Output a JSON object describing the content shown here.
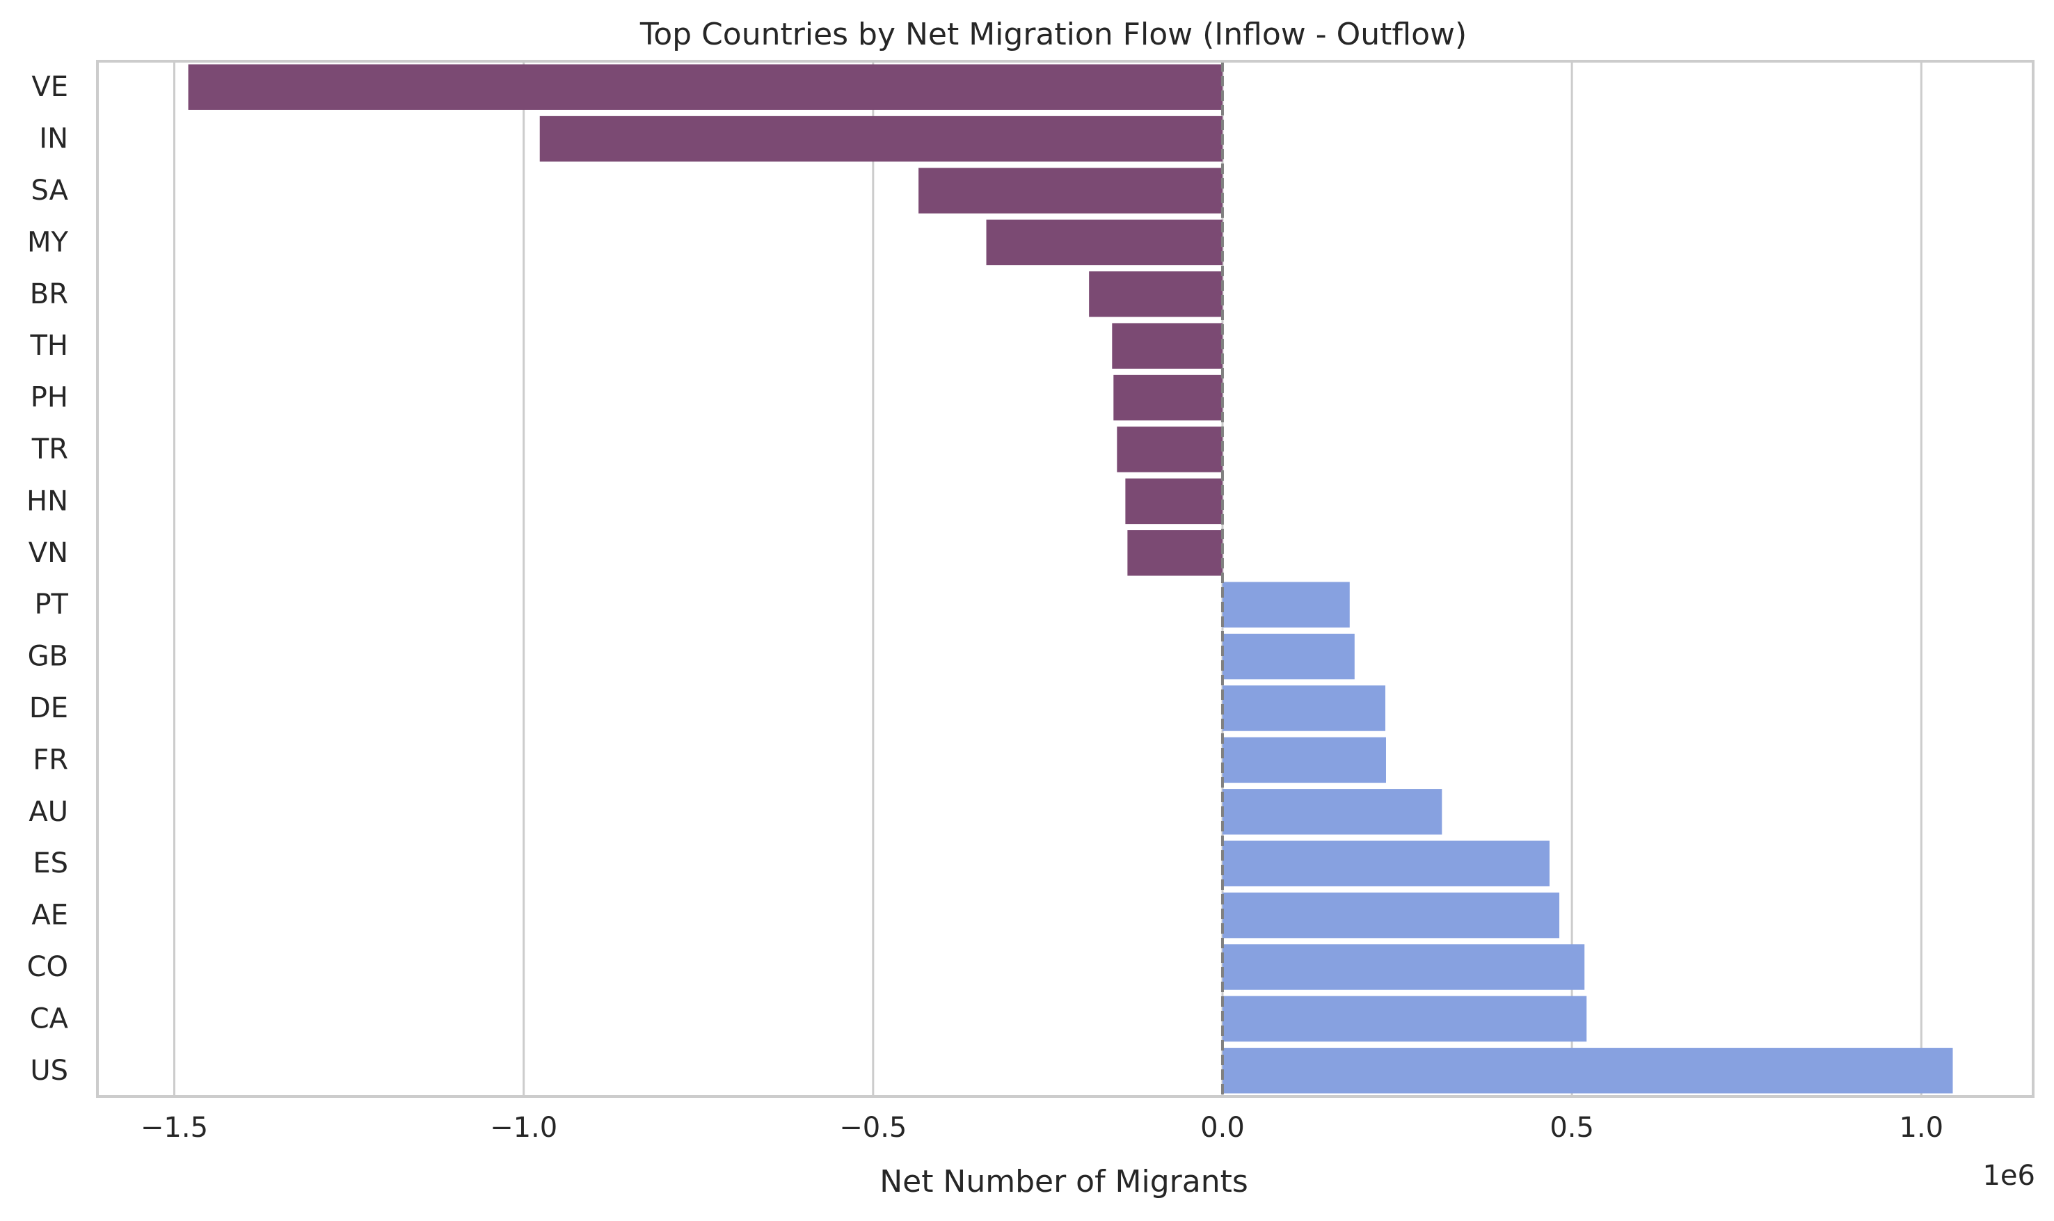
{
  "chart_data": {
    "type": "bar",
    "orientation": "horizontal",
    "title": "Top Countries by Net Migration Flow (Inflow - Outflow)",
    "xlabel": "Net Number of Migrants",
    "ylabel": "",
    "x_offset_label": "1e6",
    "xlim": [
      -1.61,
      1.16
    ],
    "x_ticks": [
      -1.5,
      -1.0,
      -0.5,
      0.0,
      0.5,
      1.0
    ],
    "x_tick_labels": [
      "−1.5",
      "−1.0",
      "−0.5",
      "0.0",
      "0.5",
      "1.0"
    ],
    "grid": true,
    "legend": "none",
    "zero_line": true,
    "colors": {
      "negative": "#7b4a73",
      "positive": "#87a1e0",
      "grid": "#cccccc",
      "spine": "#cccccc",
      "zero_line": "#808080"
    },
    "categories": [
      "VE",
      "IN",
      "SA",
      "MY",
      "BR",
      "TH",
      "PH",
      "TR",
      "HN",
      "VN",
      "PT",
      "GB",
      "DE",
      "FR",
      "AU",
      "ES",
      "AE",
      "CO",
      "CA",
      "US"
    ],
    "values": [
      -1.48,
      -0.977,
      -0.435,
      -0.338,
      -0.191,
      -0.158,
      -0.156,
      -0.151,
      -0.139,
      -0.136,
      0.182,
      0.189,
      0.233,
      0.234,
      0.314,
      0.468,
      0.482,
      0.518,
      0.521,
      1.045
    ],
    "value_units": "1e6"
  }
}
